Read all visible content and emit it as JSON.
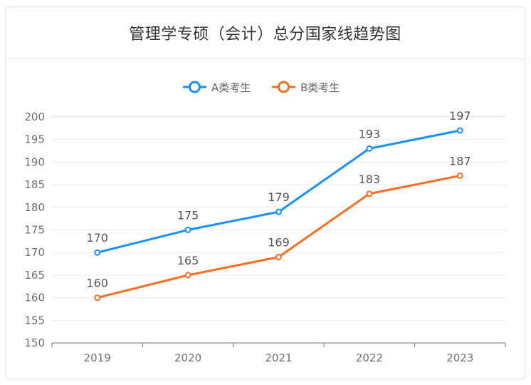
{
  "title": "管理学专硕（会计）总分国家线趋势图",
  "chart_data": {
    "type": "line",
    "title": "管理学专硕（会计）总分国家线趋势图",
    "categories": [
      "2019",
      "2020",
      "2021",
      "2022",
      "2023"
    ],
    "series": [
      {
        "name": "A类考生",
        "values": [
          170,
          175,
          179,
          193,
          197
        ],
        "color": "#1890ff"
      },
      {
        "name": "B类考生",
        "values": [
          160,
          165,
          169,
          183,
          187
        ],
        "color": "#fa6e1e"
      }
    ],
    "ylim": [
      150,
      200
    ],
    "ytick_step": 5,
    "xlabel": "",
    "ylabel": "",
    "grid": true,
    "legend_position": "top-center",
    "data_labels": true
  }
}
